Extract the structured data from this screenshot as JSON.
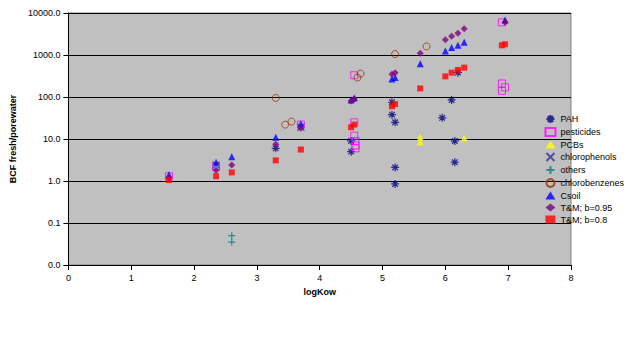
{
  "chart_data": {
    "type": "scatter",
    "x_label": "logKow",
    "y_label": "BCF fresh/porewater",
    "xlim": [
      0,
      8
    ],
    "xticks": [
      0,
      1,
      2,
      3,
      4,
      5,
      6,
      7,
      8
    ],
    "ylim": [
      0.01,
      10000
    ],
    "yticks": [
      {
        "value": 0.01,
        "label": "0.0"
      },
      {
        "value": 0.1,
        "label": "0.1"
      },
      {
        "value": 1,
        "label": "1.0"
      },
      {
        "value": 10,
        "label": "10.0"
      },
      {
        "value": 100,
        "label": "100.0"
      },
      {
        "value": 1000,
        "label": "1000.0"
      },
      {
        "value": 10000,
        "label": "10000.0"
      }
    ],
    "log": "y",
    "grid": true,
    "legend": "right",
    "series": [
      {
        "name": "PAH",
        "color": "#000080",
        "marker": "asterisk",
        "x": [
          3.3,
          4.5,
          4.5,
          5.15,
          5.15,
          5.2,
          5.2,
          5.2,
          5.95,
          6.1,
          6.15,
          6.15,
          6.2
        ],
        "values": [
          6,
          9,
          5,
          75,
          38,
          25,
          2.1,
          0.85,
          32,
          85,
          9,
          2.8,
          380
        ]
      },
      {
        "name": "pesticides",
        "color": "#ff00ff",
        "marker": "square_open",
        "x": [
          1.6,
          2.35,
          3.7,
          4.55,
          4.55,
          4.55,
          4.57,
          4.57,
          4.57,
          6.9,
          6.9,
          6.95,
          6.9
        ],
        "values": [
          1.3,
          2.2,
          22,
          330,
          25,
          12,
          9,
          7,
          6,
          6000,
          210,
          170,
          140
        ]
      },
      {
        "name": "PCBs",
        "color": "#ffff00",
        "marker": "triangle",
        "x": [
          5.6,
          5.6,
          6.3
        ],
        "values": [
          11,
          8.5,
          10.5
        ]
      },
      {
        "name": "chlorophenols",
        "color": "#333399",
        "marker": "x",
        "x": [
          2.35,
          3.7
        ],
        "values": [
          2.4,
          19
        ]
      },
      {
        "name": "others",
        "color": "#008080",
        "marker": "plus",
        "x": [
          2.6,
          2.6
        ],
        "values": [
          0.05,
          0.035
        ]
      },
      {
        "name": "chlorobenzenes",
        "color": "#993300",
        "marker": "circle_open",
        "x": [
          3.3,
          3.45,
          3.55,
          4.6,
          4.65,
          5.2,
          5.7
        ],
        "values": [
          95,
          22,
          26,
          290,
          360,
          1050,
          1600
        ]
      },
      {
        "name": "Csoil",
        "color": "#0000ff",
        "marker": "triangle",
        "x": [
          1.6,
          2.35,
          2.6,
          3.3,
          3.7,
          4.5,
          4.55,
          5.15,
          5.2,
          5.6,
          6.0,
          6.1,
          6.2,
          6.3,
          6.95
        ],
        "values": [
          1.4,
          2.8,
          3.8,
          11,
          23,
          85,
          95,
          270,
          290,
          620,
          1250,
          1500,
          1700,
          2000,
          6800
        ]
      },
      {
        "name": "T&M; b=0.95",
        "color": "#800080",
        "marker": "diamond",
        "x": [
          1.6,
          2.35,
          2.6,
          3.3,
          3.7,
          4.5,
          4.55,
          5.15,
          5.2,
          5.6,
          6.0,
          6.1,
          6.2,
          6.3,
          6.95
        ],
        "values": [
          1.2,
          1.8,
          2.4,
          7.5,
          18,
          80,
          90,
          350,
          380,
          1100,
          2300,
          2800,
          3300,
          4200,
          6000
        ]
      },
      {
        "name": "T&M; b=0.8",
        "color": "#ff0000",
        "marker": "square",
        "x": [
          1.6,
          2.35,
          2.6,
          3.3,
          3.7,
          4.5,
          4.55,
          5.15,
          5.2,
          5.6,
          6.0,
          6.1,
          6.2,
          6.3,
          6.9,
          6.95
        ],
        "values": [
          1.05,
          1.3,
          1.6,
          3.1,
          5.6,
          19,
          22,
          60,
          68,
          160,
          310,
          380,
          440,
          500,
          1700,
          1800
        ]
      }
    ]
  }
}
